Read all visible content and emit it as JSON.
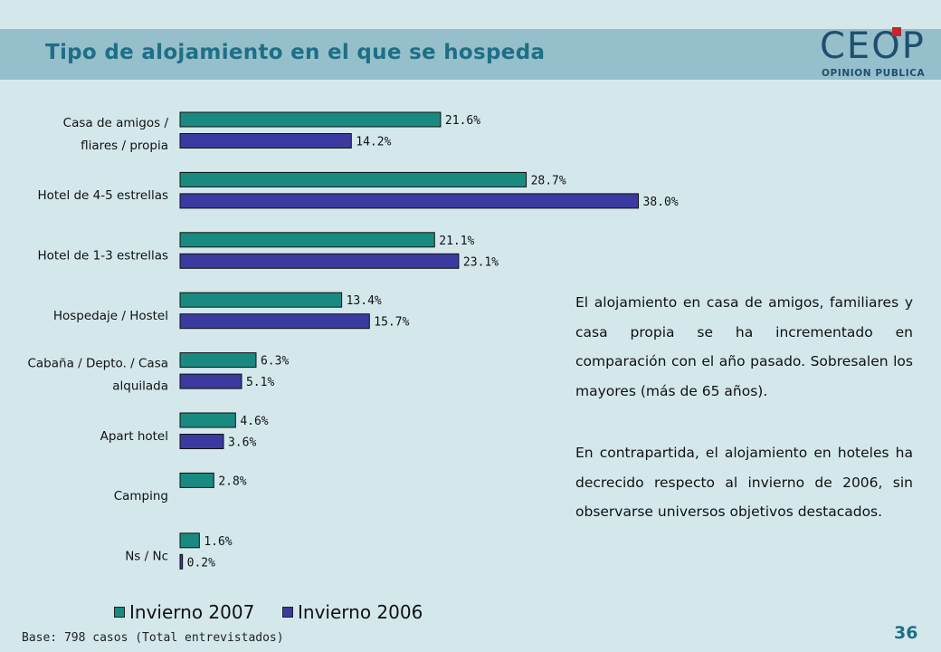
{
  "header": {
    "title": "Tipo de alojamiento en el que se hospeda"
  },
  "logo": {
    "main": "CEOP",
    "sub": "OPINION PUBLICA",
    "accent_color": "#c4262e"
  },
  "chart_data": {
    "type": "bar",
    "orientation": "horizontal",
    "categories": [
      [
        "Casa de amigos /",
        "fliares / propia"
      ],
      [
        "Hotel de 4-5 estrellas"
      ],
      [
        "Hotel de 1-3 estrellas"
      ],
      [
        "Hospedaje / Hostel"
      ],
      [
        "Cabaña / Depto. / Casa",
        "alquilada"
      ],
      [
        "Apart hotel"
      ],
      [
        "Camping"
      ],
      [
        "Ns / Nc"
      ]
    ],
    "series": [
      {
        "name": "Invierno 2007",
        "color": "#1a8a80",
        "values": [
          21.6,
          28.7,
          21.1,
          13.4,
          6.3,
          4.6,
          2.8,
          1.6
        ],
        "labels": [
          "21.6%",
          "28.7%",
          "21.1%",
          "13.4%",
          "6.3%",
          "4.6%",
          "2.8%",
          "1.6%"
        ]
      },
      {
        "name": "Invierno 2006",
        "color": "#3a3aa0",
        "values": [
          14.2,
          38.0,
          23.1,
          15.7,
          5.1,
          3.6,
          null,
          0.2
        ],
        "labels": [
          "14.2%",
          "38.0%",
          "23.1%",
          "15.7%",
          "5.1%",
          "3.6%",
          "",
          "0.2%"
        ]
      }
    ],
    "xlim": [
      0,
      40
    ],
    "grid": false,
    "legend_position": "bottom"
  },
  "commentary": {
    "p1": "El alojamiento en casa de amigos, familiares y casa propia se ha incrementado en comparación con el año pasado. Sobresalen los mayores (más de 65 años).",
    "p2": "En contrapartida, el alojamiento en hoteles ha decrecido respecto al invierno de 2006, sin observarse universos objetivos destacados."
  },
  "footer": {
    "base": "Base: 798 casos (Total entrevistados)",
    "page_number": "36"
  }
}
